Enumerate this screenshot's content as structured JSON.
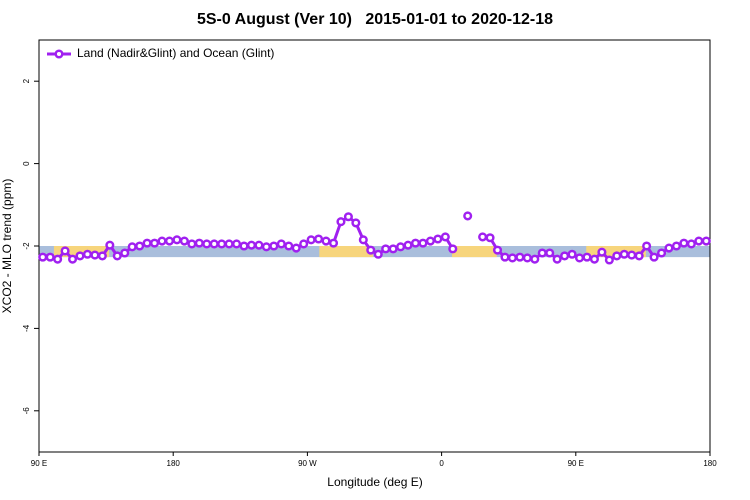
{
  "chart_data": {
    "type": "line",
    "title": "5S-0 August (Ver 10)   2015-01-01 to 2020-12-18",
    "xlabel": "Longitude (deg E)",
    "ylabel": "XCO2 - MLO trend (ppm)",
    "xlim": [
      90,
      540
    ],
    "ylim": [
      -7,
      3
    ],
    "xticks": [
      {
        "value": 90,
        "label": "90 E"
      },
      180,
      {
        "value": 270,
        "label": "90 W"
      },
      {
        "value": 360,
        "label": "0"
      },
      {
        "value": 450,
        "label": "90 E"
      },
      {
        "value": 540,
        "label": "180"
      }
    ],
    "yticks": [
      2,
      0,
      -2,
      -4,
      -6
    ],
    "legend": "top-left",
    "band_ylim": [
      -2.27,
      -2
    ],
    "ocean_color": "#a9bedc",
    "land_color": "#f7d57c",
    "land_lon": [
      [
        100,
        137
      ],
      [
        278,
        314
      ],
      [
        367,
        397
      ],
      [
        457,
        497
      ]
    ],
    "x": [
      92.5,
      97.5,
      102.5,
      107.5,
      112.5,
      117.5,
      122.5,
      127.5,
      132.5,
      137.5,
      142.5,
      147.5,
      152.5,
      157.5,
      162.5,
      167.5,
      172.5,
      177.5,
      182.5,
      187.5,
      192.5,
      197.5,
      202.5,
      207.5,
      212.5,
      217.5,
      222.5,
      227.5,
      232.5,
      237.5,
      242.5,
      247.5,
      252.5,
      257.5,
      262.5,
      267.5,
      272.5,
      277.5,
      282.5,
      287.5,
      292.5,
      297.5,
      302.5,
      307.5,
      312.5,
      317.5,
      322.5,
      327.5,
      332.5,
      337.5,
      342.5,
      347.5,
      352.5,
      357.5,
      362.5,
      367.5,
      372.5,
      377.5,
      382.5,
      387.5,
      392.5,
      397.5,
      402.5,
      407.5,
      412.5,
      417.5,
      422.5,
      427.5,
      432.5,
      437.5,
      442.5,
      447.5,
      452.5,
      457.5,
      462.5,
      467.5,
      472.5,
      477.5,
      482.5,
      487.5,
      492.5,
      497.5,
      502.5,
      507.5,
      512.5,
      517.5,
      522.5,
      527.5,
      532.5,
      537.5
    ],
    "series": [
      {
        "name": "Land (Nadir&Glint) and Ocean (Glint)",
        "color": "#a020f0",
        "values": [
          -2.27,
          -2.27,
          -2.32,
          -2.12,
          -2.32,
          -2.24,
          -2.2,
          -2.22,
          -2.24,
          -1.98,
          -2.24,
          -2.17,
          -2.02,
          -2.0,
          -1.93,
          -1.93,
          -1.88,
          -1.88,
          -1.85,
          -1.88,
          -1.95,
          -1.93,
          -1.95,
          -1.95,
          -1.95,
          -1.95,
          -1.95,
          -2.0,
          -1.98,
          -1.98,
          -2.02,
          -2.0,
          -1.95,
          -2.0,
          -2.05,
          -1.95,
          -1.85,
          -1.83,
          -1.88,
          -1.93,
          -1.41,
          -1.29,
          -1.44,
          -1.85,
          -2.1,
          -2.2,
          -2.07,
          -2.07,
          -2.02,
          -1.98,
          -1.93,
          -1.93,
          -1.88,
          -1.83,
          -1.78,
          -2.07,
          null,
          -1.27,
          null,
          -1.78,
          -1.8,
          -2.1,
          -2.27,
          -2.29,
          -2.27,
          -2.29,
          -2.32,
          -2.17,
          -2.17,
          -2.32,
          -2.24,
          -2.2,
          -2.29,
          -2.27,
          -2.32,
          -2.15,
          -2.34,
          -2.24,
          -2.2,
          -2.22,
          -2.24,
          -2.0,
          -2.27,
          -2.17,
          -2.05,
          -2.0,
          -1.93,
          -1.95,
          -1.88,
          -1.88
        ]
      }
    ]
  }
}
